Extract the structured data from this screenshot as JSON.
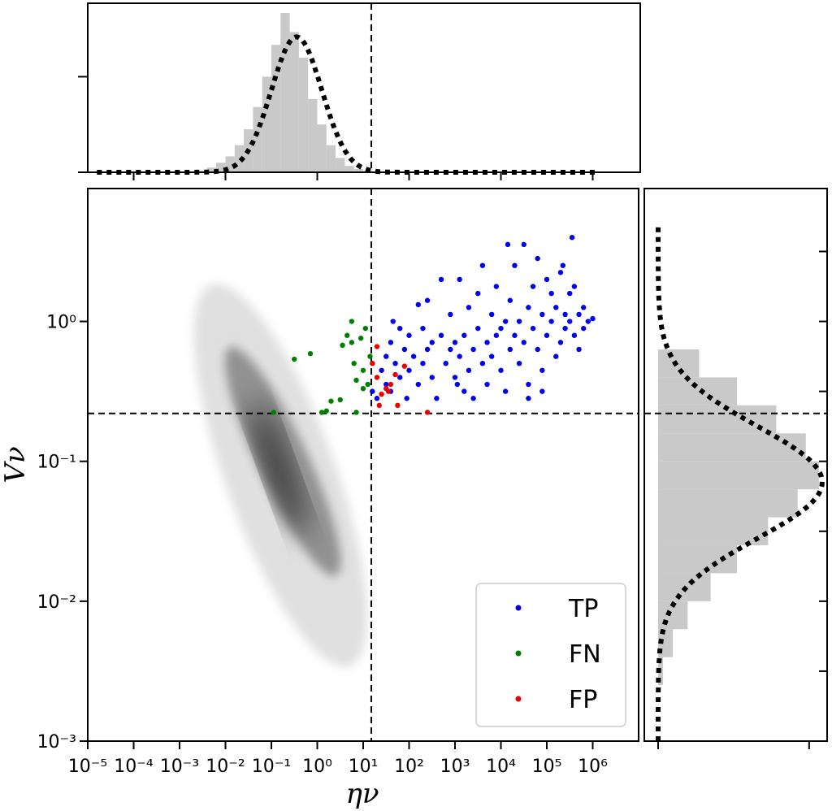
{
  "chart_data": {
    "type": "scatter",
    "title": "",
    "xlabel": "ην",
    "ylabel": "Vν",
    "x_scale": "log",
    "y_scale": "log",
    "xlim_log10": [
      -5,
      7
    ],
    "ylim_log10": [
      -3,
      0.95
    ],
    "x_tick_labels": [
      "10⁻⁵",
      "10⁻⁴",
      "10⁻³",
      "10⁻²",
      "10⁻¹",
      "10⁰",
      "10¹",
      "10²",
      "10³",
      "10⁴",
      "10⁵",
      "10⁶"
    ],
    "y_tick_labels": [
      "10⁻³",
      "10⁻²",
      "10⁻¹",
      "10⁰"
    ],
    "threshold_eta": 15,
    "threshold_v": 0.22,
    "legend_position": "lower-right",
    "grid": false,
    "series": [
      {
        "name": "TP",
        "color": "#0000ee",
        "log10_points": [
          [
            1.3,
            -0.55
          ],
          [
            1.4,
            -0.35
          ],
          [
            1.5,
            -0.25
          ],
          [
            1.5,
            -0.45
          ],
          [
            1.6,
            -0.15
          ],
          [
            1.6,
            -0.5
          ],
          [
            1.7,
            -0.3
          ],
          [
            1.8,
            -0.05
          ],
          [
            1.8,
            -0.4
          ],
          [
            1.9,
            -0.2
          ],
          [
            2.0,
            -0.1
          ],
          [
            2.0,
            -0.35
          ],
          [
            2.1,
            -0.25
          ],
          [
            2.2,
            -0.45
          ],
          [
            2.3,
            -0.05
          ],
          [
            2.3,
            -0.3
          ],
          [
            2.4,
            0.15
          ],
          [
            2.4,
            -0.2
          ],
          [
            2.5,
            -0.15
          ],
          [
            2.5,
            -0.4
          ],
          [
            2.6,
            -0.55
          ],
          [
            2.7,
            -0.1
          ],
          [
            2.7,
            0.3
          ],
          [
            2.8,
            -0.3
          ],
          [
            2.9,
            -0.2
          ],
          [
            2.9,
            0.05
          ],
          [
            3.0,
            -0.15
          ],
          [
            3.0,
            -0.4
          ],
          [
            3.1,
            0.3
          ],
          [
            3.1,
            -0.25
          ],
          [
            3.2,
            -0.1
          ],
          [
            3.2,
            -0.5
          ],
          [
            3.3,
            0.1
          ],
          [
            3.3,
            -0.35
          ],
          [
            3.4,
            -0.2
          ],
          [
            3.5,
            0.2
          ],
          [
            3.5,
            -0.05
          ],
          [
            3.6,
            -0.3
          ],
          [
            3.6,
            0.4
          ],
          [
            3.7,
            -0.15
          ],
          [
            3.7,
            -0.45
          ],
          [
            3.8,
            0.05
          ],
          [
            3.8,
            -0.25
          ],
          [
            3.9,
            -0.1
          ],
          [
            3.9,
            0.25
          ],
          [
            4.0,
            -0.35
          ],
          [
            4.0,
            -0.05
          ],
          [
            4.1,
            0.0
          ],
          [
            4.1,
            -0.5
          ],
          [
            4.2,
            -0.2
          ],
          [
            4.2,
            0.15
          ],
          [
            4.3,
            -0.1
          ],
          [
            4.3,
            0.4
          ],
          [
            4.4,
            -0.3
          ],
          [
            4.4,
            0.0
          ],
          [
            4.5,
            0.55
          ],
          [
            4.5,
            -0.15
          ],
          [
            4.6,
            -0.45
          ],
          [
            4.6,
            0.1
          ],
          [
            4.7,
            -0.05
          ],
          [
            4.7,
            0.25
          ],
          [
            4.8,
            -0.2
          ],
          [
            4.8,
            0.45
          ],
          [
            4.9,
            0.05
          ],
          [
            4.9,
            -0.35
          ],
          [
            5.0,
            0.3
          ],
          [
            5.0,
            -0.1
          ],
          [
            5.1,
            0.0
          ],
          [
            5.1,
            0.2
          ],
          [
            5.2,
            -0.25
          ],
          [
            5.2,
            0.1
          ],
          [
            5.3,
            0.35
          ],
          [
            5.3,
            -0.15
          ],
          [
            5.4,
            0.05
          ],
          [
            5.4,
            -0.05
          ],
          [
            5.5,
            0.2
          ],
          [
            5.5,
            0.0
          ],
          [
            5.6,
            -0.1
          ],
          [
            5.6,
            0.25
          ],
          [
            5.7,
            0.05
          ],
          [
            5.7,
            -0.2
          ],
          [
            5.8,
            0.1
          ],
          [
            5.8,
            -0.05
          ],
          [
            5.9,
            0.0
          ],
          [
            6.0,
            0.02
          ],
          [
            4.6,
            -0.55
          ],
          [
            4.9,
            -0.5
          ],
          [
            3.4,
            -0.55
          ],
          [
            5.35,
            0.4
          ],
          [
            2.2,
            0.12
          ],
          [
            1.65,
            0.0
          ],
          [
            1.2,
            -0.5
          ],
          [
            4.15,
            0.55
          ],
          [
            3.05,
            -0.45
          ],
          [
            5.55,
            0.6
          ],
          [
            1.95,
            -0.55
          ]
        ]
      },
      {
        "name": "FN",
        "color": "#008000",
        "log10_points": [
          [
            -0.95,
            -0.65
          ],
          [
            -0.5,
            -0.27
          ],
          [
            -0.15,
            -0.23
          ],
          [
            0.1,
            -0.65
          ],
          [
            0.2,
            -0.64
          ],
          [
            0.3,
            -0.57
          ],
          [
            0.5,
            -0.56
          ],
          [
            0.55,
            -0.17
          ],
          [
            0.65,
            -0.1
          ],
          [
            0.75,
            0.0
          ],
          [
            0.75,
            -0.15
          ],
          [
            0.8,
            -0.3
          ],
          [
            0.85,
            -0.42
          ],
          [
            0.85,
            -0.65
          ],
          [
            0.95,
            -0.12
          ],
          [
            1.0,
            -0.48
          ],
          [
            1.0,
            -0.35
          ],
          [
            1.05,
            -0.05
          ],
          [
            1.1,
            -0.45
          ],
          [
            1.15,
            -0.25
          ]
        ]
      },
      {
        "name": "FP",
        "color": "#ee0000",
        "log10_points": [
          [
            1.2,
            -0.3
          ],
          [
            1.3,
            -0.18
          ],
          [
            1.3,
            -0.4
          ],
          [
            1.4,
            -0.52
          ],
          [
            1.5,
            -0.48
          ],
          [
            1.6,
            -0.45
          ],
          [
            1.7,
            -0.38
          ],
          [
            1.75,
            -0.6
          ],
          [
            1.9,
            -0.32
          ],
          [
            1.35,
            -0.6
          ],
          [
            2.4,
            -0.65
          ],
          [
            1.55,
            -0.5
          ]
        ]
      }
    ],
    "top_histogram": {
      "bin_edges_log10": [
        -2.6,
        -2.4,
        -2.2,
        -2.0,
        -1.8,
        -1.6,
        -1.4,
        -1.2,
        -1.0,
        -0.8,
        -0.6,
        -0.4,
        -0.2,
        0.0,
        0.2,
        0.4,
        0.6,
        0.8,
        1.0,
        1.2
      ],
      "heights": [
        0.01,
        0.03,
        0.06,
        0.1,
        0.17,
        0.27,
        0.41,
        0.6,
        0.8,
        1.0,
        0.88,
        0.72,
        0.46,
        0.3,
        0.17,
        0.09,
        0.04,
        0.02,
        0.01
      ]
    },
    "top_fit_curve": {
      "type": "gaussian",
      "mean_log10": -0.45,
      "sd_log10": 0.55,
      "peak": 0.85,
      "range_log10": [
        -4.8,
        6.1
      ]
    },
    "right_histogram": {
      "bin_edges_log10": [
        -2.6,
        -2.4,
        -2.2,
        -2.0,
        -1.8,
        -1.6,
        -1.4,
        -1.2,
        -1.0,
        -0.8,
        -0.6,
        -0.4,
        -0.2
      ],
      "heights": [
        0.03,
        0.09,
        0.18,
        0.32,
        0.48,
        0.67,
        0.85,
        0.98,
        0.9,
        0.72,
        0.48,
        0.25
      ]
    },
    "right_fit_curve": {
      "type": "gaussian",
      "mean_log10": -1.15,
      "sd_log10": 0.4,
      "peak": 1.0,
      "range_log10": [
        -3.0,
        0.7
      ]
    },
    "density_blobs": [
      {
        "cx_log10": -0.85,
        "cy_log10": -1.05,
        "rx_log10": 0.22,
        "ry_log10": 0.5,
        "rot": -20,
        "alpha": 0.85
      },
      {
        "cx_log10": -0.75,
        "cy_log10": -1.0,
        "rx_log10": 0.55,
        "ry_log10": 0.9,
        "rot": -25,
        "alpha": 0.35
      },
      {
        "cx_log10": -0.8,
        "cy_log10": -1.1,
        "rx_log10": 1.2,
        "ry_log10": 1.45,
        "rot": -20,
        "alpha": 0.12
      }
    ]
  }
}
